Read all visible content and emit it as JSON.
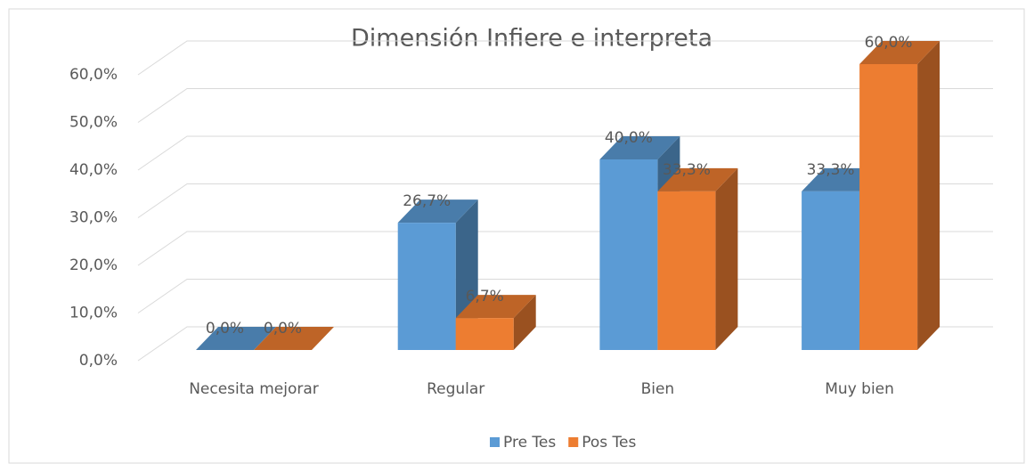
{
  "chart_data": {
    "type": "bar3d",
    "title": "Dimensión Infiere e interpreta",
    "categories": [
      "Necesita mejorar",
      "Regular",
      "Bien",
      "Muy bien"
    ],
    "series": [
      {
        "name": "Pre Tes",
        "color": "#5b9bd5",
        "values": [
          0,
          26.7,
          40,
          33.3
        ],
        "value_labels": [
          "0,0%",
          "26,7%",
          "40,0%",
          "33,3%"
        ]
      },
      {
        "name": "Pos Tes",
        "color": "#ed7d31",
        "values": [
          0,
          6.7,
          33.3,
          60
        ],
        "value_labels": [
          "0,0%",
          "6,7%",
          "33,3%",
          "60,0%"
        ]
      }
    ],
    "ylim": [
      0,
      60
    ],
    "yticks": [
      {
        "value": 0,
        "label": "0,0%"
      },
      {
        "value": 10,
        "label": "10,0%"
      },
      {
        "value": 20,
        "label": "20,0%"
      },
      {
        "value": 30,
        "label": "30,0%"
      },
      {
        "value": 40,
        "label": "40,0%"
      },
      {
        "value": 50,
        "label": "50,0%"
      },
      {
        "value": 60,
        "label": "60,0%"
      }
    ],
    "grid": true,
    "legend": "bottom"
  }
}
